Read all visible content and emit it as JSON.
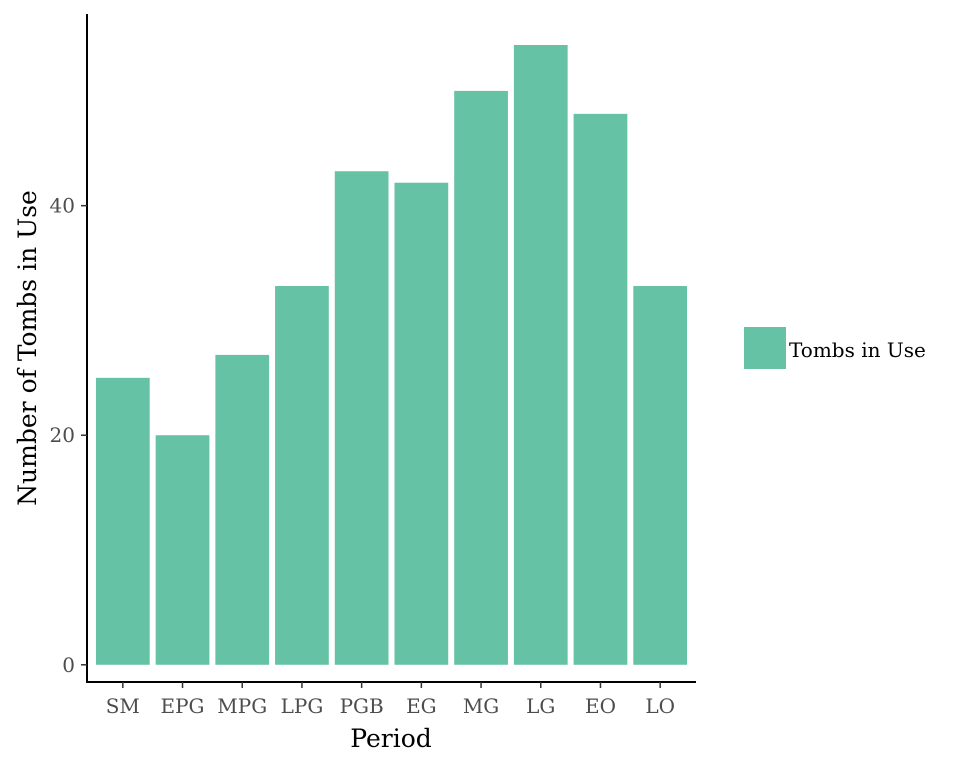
{
  "chart_data": {
    "type": "bar",
    "title": "",
    "xlabel": "Period",
    "ylabel": "Number of Tombs in Use",
    "categories": [
      "SM",
      "EPG",
      "MPG",
      "LPG",
      "PGB",
      "EG",
      "MG",
      "LG",
      "EO",
      "LO"
    ],
    "series": [
      {
        "name": "Tombs in Use",
        "values": [
          25,
          20,
          27,
          33,
          43,
          42,
          50,
          54,
          48,
          33
        ],
        "color": "#66c2a5"
      }
    ],
    "ylim": [
      -1.5,
      56.7
    ],
    "yticks": [
      "0",
      "20",
      "40"
    ],
    "grid": false,
    "legend": "right"
  }
}
